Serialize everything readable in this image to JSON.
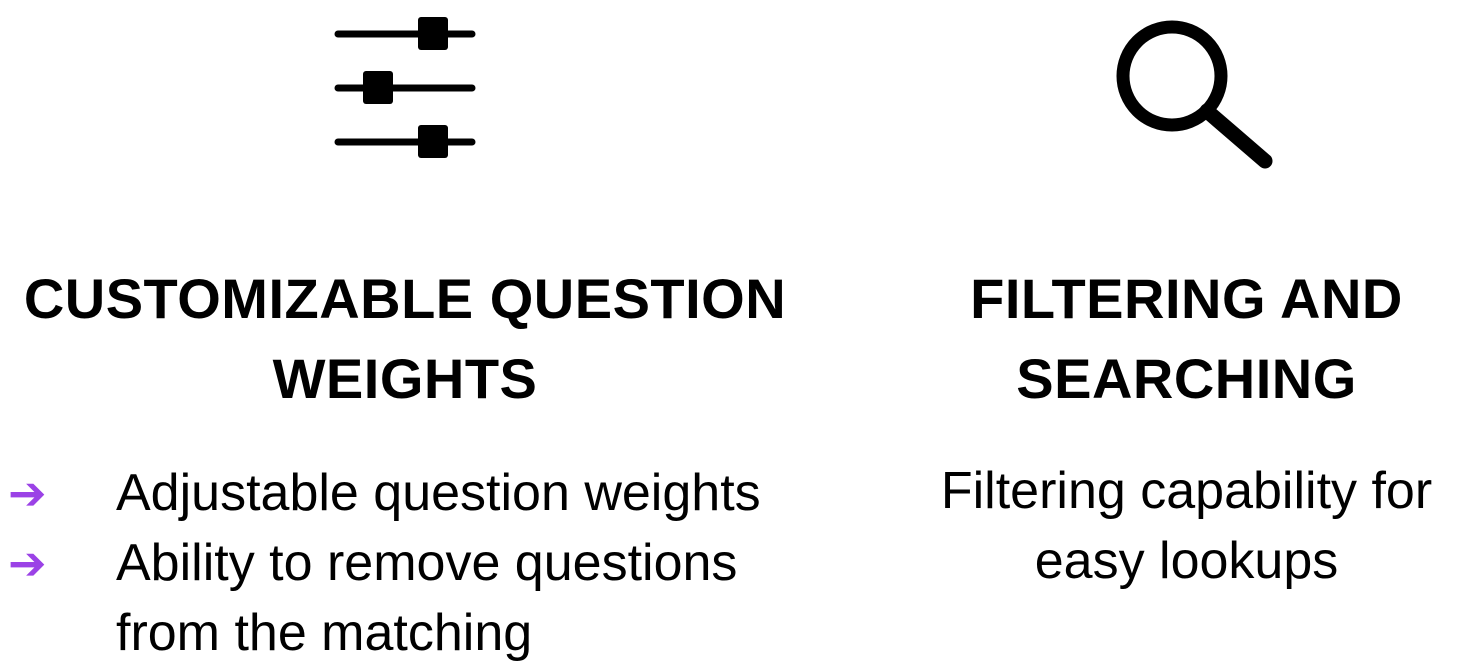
{
  "accent_color": "#9b42e6",
  "features": {
    "left": {
      "icon": "sliders-icon",
      "title": "CUSTOMIZABLE QUESTION WEIGHTS",
      "bullet_marker": "➔",
      "bullets": [
        "Adjustable question weights",
        "Ability to remove questions from the matching"
      ]
    },
    "right": {
      "icon": "search-icon",
      "title": "FILTERING AND SEARCHING",
      "description": "Filtering capability for easy lookups"
    }
  }
}
